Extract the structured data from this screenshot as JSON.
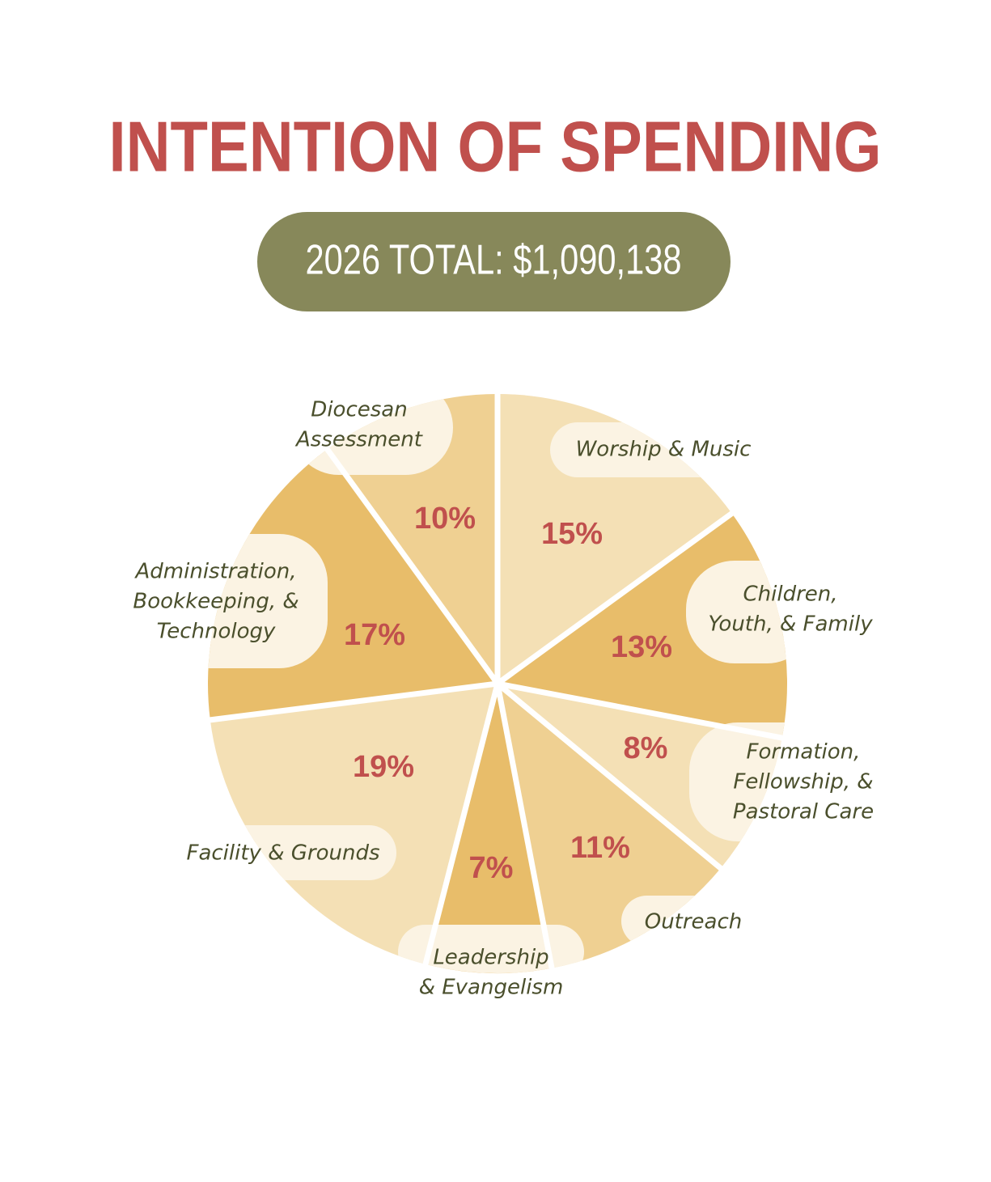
{
  "chart_data": {
    "type": "pie",
    "title": "INTENTION OF SPENDING",
    "subtitle": "2026 TOTAL: $1,090,138",
    "categories": [
      [
        "Worship & Music"
      ],
      [
        "Children,",
        "Youth, & Family"
      ],
      [
        "Formation,",
        "Fellowship, &",
        "Pastoral Care"
      ],
      [
        "Outreach"
      ],
      [
        "Leadership",
        "& Evangelism"
      ],
      [
        "Facility & Grounds"
      ],
      [
        "Administration,",
        "Bookkeeping, &",
        "Technology"
      ],
      [
        "Diocesan",
        "Assessment"
      ]
    ],
    "values": [
      15,
      13,
      8,
      11,
      7,
      19,
      17,
      10
    ],
    "value_labels": [
      "15%",
      "13%",
      "8%",
      "11%",
      "7%",
      "19%",
      "17%",
      "10%"
    ],
    "colors": [
      "#f4e0b5",
      "#e8bd6a",
      "#f4e0b5",
      "#efd092",
      "#e8bd6a",
      "#f4e0b5",
      "#e8bd6a",
      "#efd092"
    ]
  }
}
